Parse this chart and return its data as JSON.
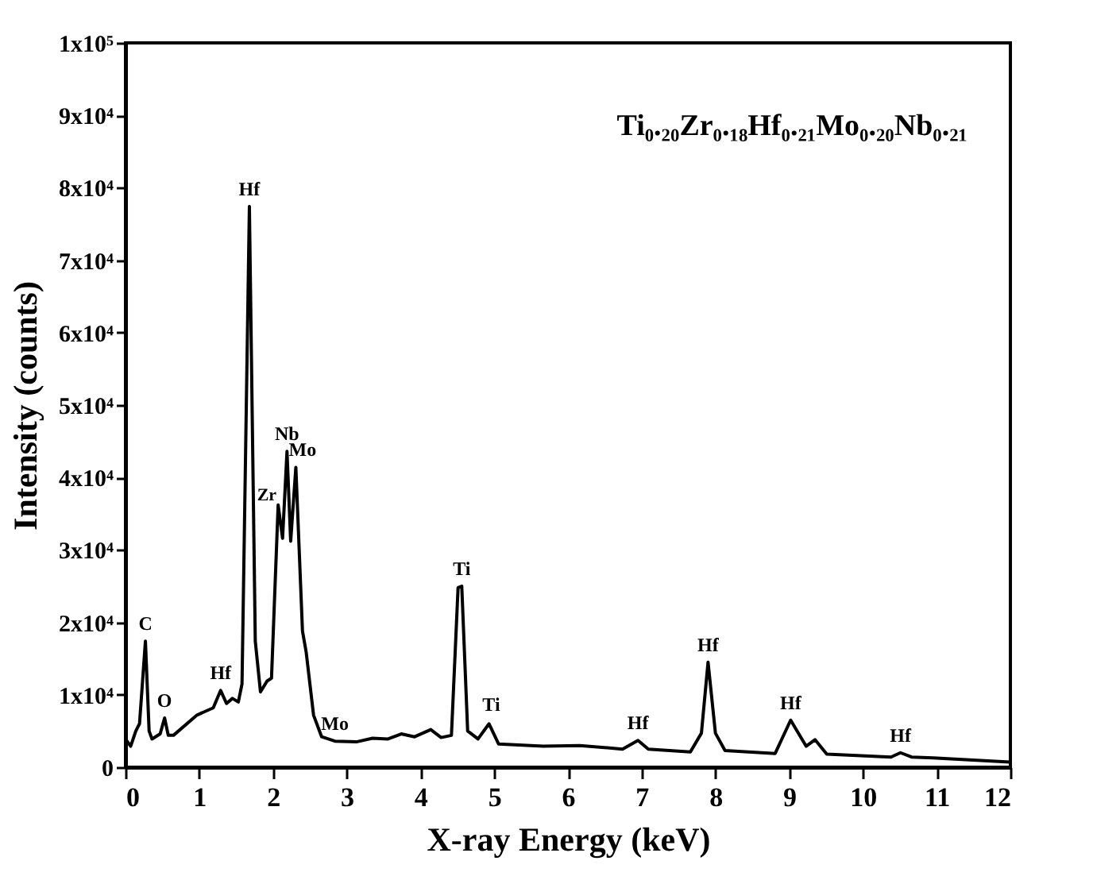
{
  "chart_data": {
    "type": "line",
    "xlabel": "X-ray Energy (keV)",
    "ylabel": "Intensity (counts)",
    "x": [
      0,
      0.07,
      0.14,
      0.19,
      0.27,
      0.32,
      0.36,
      0.47,
      0.53,
      0.58,
      0.65,
      0.97,
      1.19,
      1.29,
      1.37,
      1.45,
      1.53,
      1.58,
      1.68,
      1.76,
      1.83,
      1.92,
      1.98,
      2.07,
      2.13,
      2.19,
      2.24,
      2.31,
      2.4,
      2.45,
      2.55,
      2.66,
      2.84,
      3.13,
      3.35,
      3.56,
      3.74,
      3.92,
      4.14,
      4.28,
      4.42,
      4.51,
      4.56,
      4.64,
      4.78,
      4.93,
      5.06,
      5.66,
      6.16,
      6.74,
      6.95,
      7.09,
      7.66,
      7.81,
      7.9,
      8.0,
      8.13,
      8.81,
      9.02,
      9.23,
      9.35,
      9.51,
      10.38,
      10.51,
      10.66,
      10.95,
      11.99
    ],
    "series": [
      {
        "color": "#000000",
        "values": [
          3900,
          2900,
          5000,
          6000,
          17400,
          5000,
          3900,
          4600,
          6800,
          4400,
          4400,
          7200,
          8200,
          10600,
          8800,
          9500,
          9000,
          11500,
          77400,
          17400,
          10400,
          11900,
          12300,
          36200,
          31600,
          43600,
          31200,
          41400,
          18800,
          15900,
          7200,
          4200,
          3600,
          3500,
          4000,
          3900,
          4600,
          4200,
          5200,
          4100,
          4400,
          24800,
          25000,
          5000,
          3900,
          6000,
          3200,
          2900,
          3000,
          2500,
          3700,
          2500,
          2100,
          4700,
          14500,
          4700,
          2300,
          1900,
          6500,
          2900,
          3800,
          1800,
          1400,
          2000,
          1400,
          1300,
          700
        ]
      }
    ],
    "xlim": [
      0,
      12
    ],
    "xticks": [
      0,
      1,
      2,
      3,
      4,
      5,
      6,
      7,
      8,
      9,
      10,
      11,
      12
    ],
    "ylim": [
      0,
      100000
    ],
    "yticks": [
      0,
      {
        "value": 10000,
        "label": "1x10⁴"
      },
      {
        "value": 20000,
        "label": "2x10⁴"
      },
      {
        "value": 30000,
        "label": "3x10⁴"
      },
      {
        "value": 40000,
        "label": "4x10⁴"
      },
      {
        "value": 50000,
        "label": "5x10⁴"
      },
      {
        "value": 60000,
        "label": "6x10⁴"
      },
      {
        "value": 70000,
        "label": "7x10⁴"
      },
      {
        "value": 80000,
        "label": "8x10⁴"
      },
      {
        "value": 90000,
        "label": "9x10⁴"
      },
      {
        "value": 100000,
        "label": "1x10⁵"
      }
    ],
    "grid": false,
    "marker": "none",
    "line_style": "solid",
    "annotations": [
      "Ti₀.₂₀Zr₀.₁₈Hf₀.₂₁Mo₀.₂₀Nb₀.₂₁",
      {
        "text": "C",
        "x": 0.27,
        "y": 17400
      },
      {
        "text": "O",
        "x": 0.53,
        "y": 6800
      },
      {
        "text": "Hf",
        "x": 1.29,
        "y": 10600
      },
      {
        "text": "Hf",
        "x": 1.68,
        "y": 77400
      },
      {
        "text": "Zr",
        "x": 2.07,
        "y": 36200
      },
      {
        "text": "Nb",
        "x": 2.19,
        "y": 43600
      },
      {
        "text": "Mo",
        "x": 2.4,
        "y": 41400
      },
      {
        "text": "Mo",
        "x": 2.84,
        "y": 3600
      },
      {
        "text": "Ti",
        "x": 4.56,
        "y": 25000
      },
      {
        "text": "Ti",
        "x": 4.96,
        "y": 6300
      },
      {
        "text": "Hf",
        "x": 6.95,
        "y": 3700
      },
      {
        "text": "Hf",
        "x": 7.9,
        "y": 14500
      },
      {
        "text": "Hf",
        "x": 9.02,
        "y": 6500
      },
      {
        "text": "Hf",
        "x": 10.51,
        "y": 2000
      }
    ]
  }
}
